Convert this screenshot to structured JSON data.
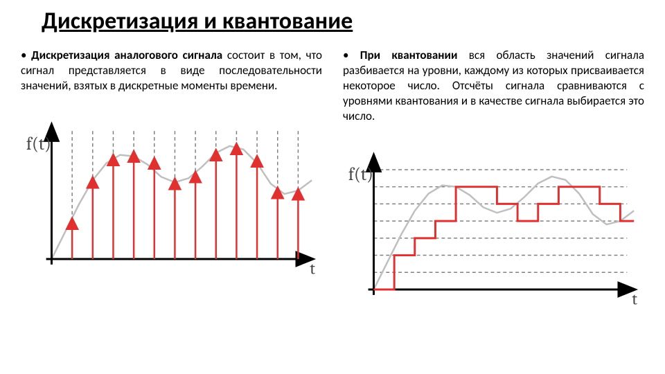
{
  "title": "Дискретизация и квантование",
  "left": {
    "bold": "Дискретизация аналогового сигнала",
    "rest": " состоит в том, что сигнал представляется в виде последовательности значений, взятых в дискретные моменты времени."
  },
  "right": {
    "bold": "При квантовании",
    "rest": " вся область значений сигнала разбивается на уровни, каждому из которых присваивается некоторое число. Отсчёты сигнала сравниваются с уровнями квантования и в качестве сигнала выбирается это число."
  },
  "axis": {
    "y_label": "f(t)",
    "x_label": "t",
    "color": "#000000",
    "width": 3
  },
  "signal": {
    "color": "#bfbfbf",
    "width": 2.5,
    "points": [
      [
        0,
        0
      ],
      [
        20,
        40
      ],
      [
        40,
        80
      ],
      [
        60,
        115
      ],
      [
        80,
        140
      ],
      [
        100,
        152
      ],
      [
        120,
        150
      ],
      [
        140,
        138
      ],
      [
        160,
        120
      ],
      [
        180,
        112
      ],
      [
        200,
        118
      ],
      [
        220,
        135
      ],
      [
        240,
        155
      ],
      [
        260,
        165
      ],
      [
        280,
        160
      ],
      [
        300,
        140
      ],
      [
        320,
        110
      ],
      [
        340,
        95
      ],
      [
        360,
        100
      ],
      [
        380,
        115
      ]
    ]
  },
  "sampling": {
    "arrow_color": "#e03030",
    "arrow_width": 2.5,
    "grid_color": "#808080",
    "grid_dash": "5,4",
    "positions": [
      30,
      60,
      90,
      120,
      150,
      180,
      210,
      240,
      270,
      300,
      330,
      360
    ],
    "heights": [
      55,
      115,
      148,
      153,
      143,
      113,
      123,
      155,
      164,
      146,
      100,
      98
    ]
  },
  "quant": {
    "step_color": "#e03030",
    "step_width": 3,
    "grid_color": "#808080",
    "grid_dash": "5,4",
    "levels": [
      0,
      25,
      50,
      75,
      100,
      125,
      150,
      175
    ],
    "positions": [
      0,
      30,
      60,
      90,
      120,
      150,
      180,
      210,
      240,
      270,
      300,
      330,
      360,
      380
    ],
    "steps": [
      0,
      50,
      75,
      100,
      150,
      150,
      125,
      100,
      125,
      150,
      150,
      125,
      100,
      100
    ]
  }
}
